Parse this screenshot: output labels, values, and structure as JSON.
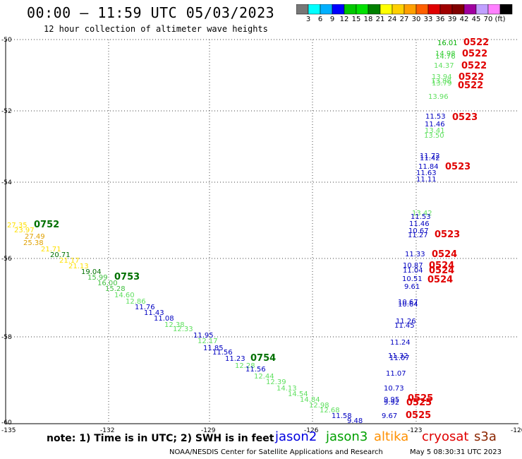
{
  "title": "00:00 — 11:59 UTC 05/03/2023",
  "subtitle": "12 hour collection of altimeter wave heights",
  "legend": {
    "colors": [
      "#777777",
      "#00ffff",
      "#00b0ff",
      "#0000ff",
      "#00c800",
      "#00e000",
      "#008000",
      "#ffff00",
      "#ffd000",
      "#ffa000",
      "#ff6000",
      "#e00000",
      "#a00000",
      "#800000",
      "#a000a0",
      "#c0a0ff",
      "#ff80ff",
      "#000000"
    ],
    "labels": [
      "3",
      "6",
      "9",
      "12",
      "15",
      "18",
      "21",
      "24",
      "27",
      "30",
      "33",
      "36",
      "39",
      "42",
      "45",
      "70",
      "(ft)"
    ]
  },
  "axes": {
    "lat_labels": [
      "-50",
      "-52",
      "-54",
      "-56",
      "-58",
      "-60"
    ],
    "lon_labels": [
      "-135",
      "-132",
      "-129",
      "-126",
      "-123",
      "-120"
    ]
  },
  "time_labels": [
    {
      "text": "0522",
      "color": "#e00000"
    },
    {
      "text": "0522",
      "color": "#e00000"
    },
    {
      "text": "0522",
      "color": "#e00000"
    },
    {
      "text": "0522",
      "color": "#e00000"
    },
    {
      "text": "0522",
      "color": "#e00000"
    },
    {
      "text": "0523",
      "color": "#e00000"
    },
    {
      "text": "0523",
      "color": "#e00000"
    },
    {
      "text": "0523",
      "color": "#e00000"
    },
    {
      "text": "0524",
      "color": "#e00000"
    },
    {
      "text": "0524",
      "color": "#e00000"
    },
    {
      "text": "0524",
      "color": "#e00000"
    },
    {
      "text": "0524",
      "color": "#e00000"
    },
    {
      "text": "0525",
      "color": "#e00000"
    },
    {
      "text": "0525",
      "color": "#e00000"
    },
    {
      "text": "0525",
      "color": "#e00000"
    },
    {
      "text": "0752",
      "color": "#007000"
    },
    {
      "text": "0753",
      "color": "#007000"
    },
    {
      "text": "0754",
      "color": "#007000"
    }
  ],
  "wave_values": [
    {
      "v": "16.01",
      "c": "#00b000"
    },
    {
      "v": "14.98",
      "c": "#40d040"
    },
    {
      "v": "14.76",
      "c": "#40d040"
    },
    {
      "v": "14.37",
      "c": "#60e060"
    },
    {
      "v": "13.94",
      "c": "#60e060"
    },
    {
      "v": "13.88",
      "c": "#60e060"
    },
    {
      "v": "13.79",
      "c": "#60e060"
    },
    {
      "v": "13.96",
      "c": "#60e060"
    },
    {
      "v": "11.53",
      "c": "#0000c0"
    },
    {
      "v": "11.46",
      "c": "#0000c0"
    },
    {
      "v": "13.41",
      "c": "#60e060"
    },
    {
      "v": "13.50",
      "c": "#60e060"
    },
    {
      "v": "11.72",
      "c": "#0000c0"
    },
    {
      "v": "11.42",
      "c": "#0000c0"
    },
    {
      "v": "11.84",
      "c": "#0000c0"
    },
    {
      "v": "11.63",
      "c": "#0000c0"
    },
    {
      "v": "11.11",
      "c": "#0000c0"
    },
    {
      "v": "13.42",
      "c": "#60e060"
    },
    {
      "v": "11.53",
      "c": "#0000c0"
    },
    {
      "v": "11.46",
      "c": "#0000c0"
    },
    {
      "v": "10.67",
      "c": "#0000c0"
    },
    {
      "v": "11.27",
      "c": "#0000c0"
    },
    {
      "v": "11.33",
      "c": "#0000c0"
    },
    {
      "v": "10.87",
      "c": "#0000c0"
    },
    {
      "v": "11.04",
      "c": "#0000c0"
    },
    {
      "v": "10.51",
      "c": "#0000c0"
    },
    {
      "v": "9.61",
      "c": "#0000c0"
    },
    {
      "v": "10.67",
      "c": "#0000c0"
    },
    {
      "v": "10.64",
      "c": "#0000c0"
    },
    {
      "v": "11.26",
      "c": "#0000c0"
    },
    {
      "v": "11.45",
      "c": "#0000c0"
    },
    {
      "v": "11.24",
      "c": "#0000c0"
    },
    {
      "v": "11.32",
      "c": "#0000c0"
    },
    {
      "v": "11.07",
      "c": "#0000c0"
    },
    {
      "v": "11.07",
      "c": "#0000c0"
    },
    {
      "v": "10.73",
      "c": "#0000c0"
    },
    {
      "v": "9.95",
      "c": "#0000c0"
    },
    {
      "v": "9.92",
      "c": "#0000c0"
    },
    {
      "v": "9.67",
      "c": "#0000c0"
    },
    {
      "v": "27.35",
      "c": "#ffe000"
    },
    {
      "v": "23.97",
      "c": "#ffe000"
    },
    {
      "v": "27.49",
      "c": "#e0a000"
    },
    {
      "v": "25.38",
      "c": "#e0a000"
    },
    {
      "v": "21.71",
      "c": "#ffe000"
    },
    {
      "v": "20.71",
      "c": "#007000"
    },
    {
      "v": "21.17",
      "c": "#ffe000"
    },
    {
      "v": "21.13",
      "c": "#ffe000"
    },
    {
      "v": "19.04",
      "c": "#007000"
    },
    {
      "v": "15.99",
      "c": "#40c040"
    },
    {
      "v": "16.00",
      "c": "#40c040"
    },
    {
      "v": "15.28",
      "c": "#40c040"
    },
    {
      "v": "14.60",
      "c": "#60e060"
    },
    {
      "v": "12.86",
      "c": "#60e060"
    },
    {
      "v": "11.76",
      "c": "#0000c0"
    },
    {
      "v": "11.43",
      "c": "#0000c0"
    },
    {
      "v": "11.08",
      "c": "#0000c0"
    },
    {
      "v": "12.38",
      "c": "#60e060"
    },
    {
      "v": "12.33",
      "c": "#60e060"
    },
    {
      "v": "11.95",
      "c": "#0000c0"
    },
    {
      "v": "12.17",
      "c": "#60e060"
    },
    {
      "v": "11.85",
      "c": "#0000c0"
    },
    {
      "v": "11.56",
      "c": "#0000c0"
    },
    {
      "v": "11.23",
      "c": "#0000c0"
    },
    {
      "v": "12.28",
      "c": "#60e060"
    },
    {
      "v": "11.56",
      "c": "#0000c0"
    },
    {
      "v": "12.44",
      "c": "#60e060"
    },
    {
      "v": "12.39",
      "c": "#60e060"
    },
    {
      "v": "14.13",
      "c": "#60e060"
    },
    {
      "v": "14.54",
      "c": "#60e060"
    },
    {
      "v": "14.84",
      "c": "#60e060"
    },
    {
      "v": "12.98",
      "c": "#60e060"
    },
    {
      "v": "12.68",
      "c": "#60e060"
    },
    {
      "v": "11.58",
      "c": "#0000c0"
    },
    {
      "v": "9.48",
      "c": "#0000c0"
    }
  ],
  "note": "note: 1) Time is in UTC; 2) SWH is in feet",
  "satellites": [
    {
      "name": "jason2",
      "color": "#0000e0"
    },
    {
      "name": "jason3",
      "color": "#00a000"
    },
    {
      "name": "altika",
      "color": "#ff9000"
    },
    {
      "name": "cryosat",
      "color": "#e00000"
    },
    {
      "name": "s3a",
      "color": "#8b2500"
    }
  ],
  "credit": "NOAA/NESDIS Center for Satellite Applications and Research",
  "timestamp": "May  5 08:30:31 UTC 2023"
}
